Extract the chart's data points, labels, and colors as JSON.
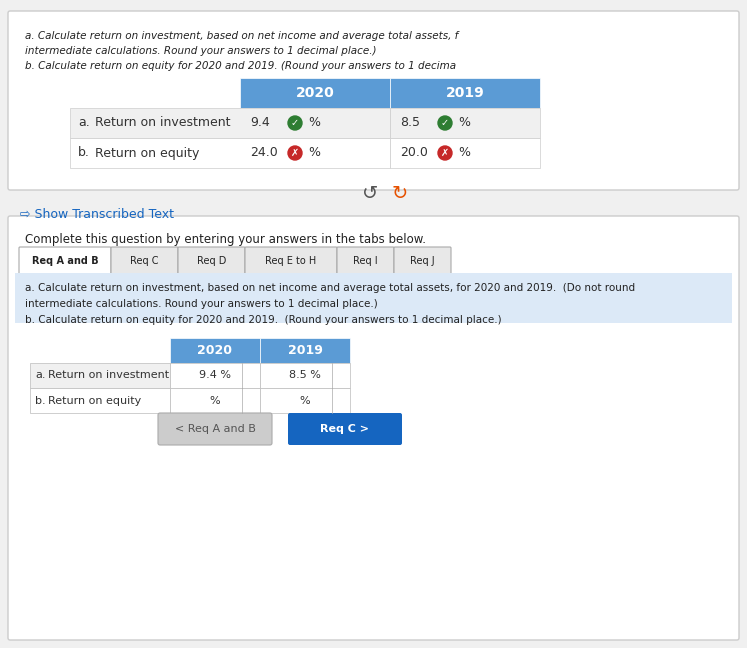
{
  "bg_color": "#f0f0f0",
  "top_panel_bg": "#ffffff",
  "top_panel_border": "#cccccc",
  "top_text_lines": [
    "a. Calculate return on investment, based on net income and average total assets, f",
    "intermediate calculations. Round your answers to 1 decimal place.)",
    "b. Calculate return on equity for 2020 and 2019. (Round your answers to 1 decima"
  ],
  "top_table_header_bg": "#5b9bd5",
  "top_table_header_color": "#ffffff",
  "top_table_header_cols": [
    "",
    "2020",
    "2019"
  ],
  "top_table_rows": [
    [
      "a.",
      "Return on investment",
      "9.4",
      "8.5"
    ],
    [
      "b.",
      "Return on equity",
      "24.0",
      "20.0"
    ]
  ],
  "check_color_green": "#2e7d32",
  "check_color_red": "#c62828",
  "show_transcribed_text": "Show Transcribed Text",
  "bottom_panel_bg": "#ffffff",
  "bottom_panel_border": "#cccccc",
  "complete_text": "Complete this question by entering your answers in the tabs below.",
  "tabs": [
    "Req A and B",
    "Req C",
    "Req D",
    "Req E to H",
    "Req I",
    "Req J"
  ],
  "active_tab": "Req A and B",
  "bottom_instruction_lines": [
    "a. Calculate return on investment, based on net income and average total assets, for 2020 and 2019.  (Do not round",
    "intermediate calculations. Round your answers to 1 decimal place.)",
    "b. Calculate return on equity for 2020 and 2019.  (Round your answers to 1 decimal place.)"
  ],
  "bottom_table_header_bg": "#5b9bd5",
  "bottom_table_header_color": "#ffffff",
  "bottom_table_rows": [
    [
      "a.",
      "Return on investment",
      "9.4 %",
      "8.5 %"
    ],
    [
      "b.",
      "Return on equity",
      "%",
      "%"
    ]
  ],
  "btn_req_a_b_text": "< Req A and B",
  "btn_req_c_text": "Req C >",
  "btn_req_c_bg": "#1565c0",
  "btn_req_c_color": "#ffffff",
  "btn_req_a_b_bg": "#cccccc",
  "btn_req_a_b_color": "#555555"
}
